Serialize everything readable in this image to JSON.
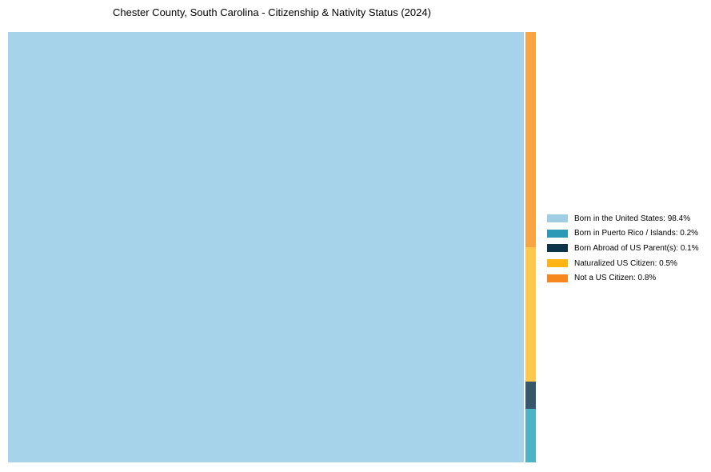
{
  "chart_data": {
    "type": "treemap",
    "title": "Chester County, South Carolina - Citizenship & Nativity Status (2024)",
    "legend_position": "right",
    "background_color": "#ffffff",
    "series": [
      {
        "label": "Born in the United States",
        "pct": 98.4,
        "legend_color": "#9fcde4",
        "cell_color": "#a6d3ea"
      },
      {
        "label": "Born in Puerto Rico / Islands",
        "pct": 0.2,
        "legend_color": "#2b9ab6",
        "cell_color": "#4db3c6"
      },
      {
        "label": "Born Abroad of US Parent(s)",
        "pct": 0.1,
        "legend_color": "#0e3449",
        "cell_color": "#36576c"
      },
      {
        "label": "Naturalized US Citizen",
        "pct": 0.5,
        "legend_color": "#fdb515",
        "cell_color": "#fdc84b"
      },
      {
        "label": "Not a US Citizen",
        "pct": 0.8,
        "legend_color": "#f6871f",
        "cell_color": "#f8a441"
      }
    ],
    "legend_labels": [
      "Born in the United States: 98.4%",
      "Born in Puerto Rico / Islands: 0.2%",
      "Born Abroad of US Parent(s): 0.1%",
      "Naturalized US Citizen: 0.5%",
      "Not a US Citizen: 0.8%"
    ],
    "strip_order_top_to_bottom": [
      "Not a US Citizen",
      "Naturalized US Citizen",
      "Born Abroad of US Parent(s)",
      "Born in Puerto Rico / Islands"
    ]
  }
}
